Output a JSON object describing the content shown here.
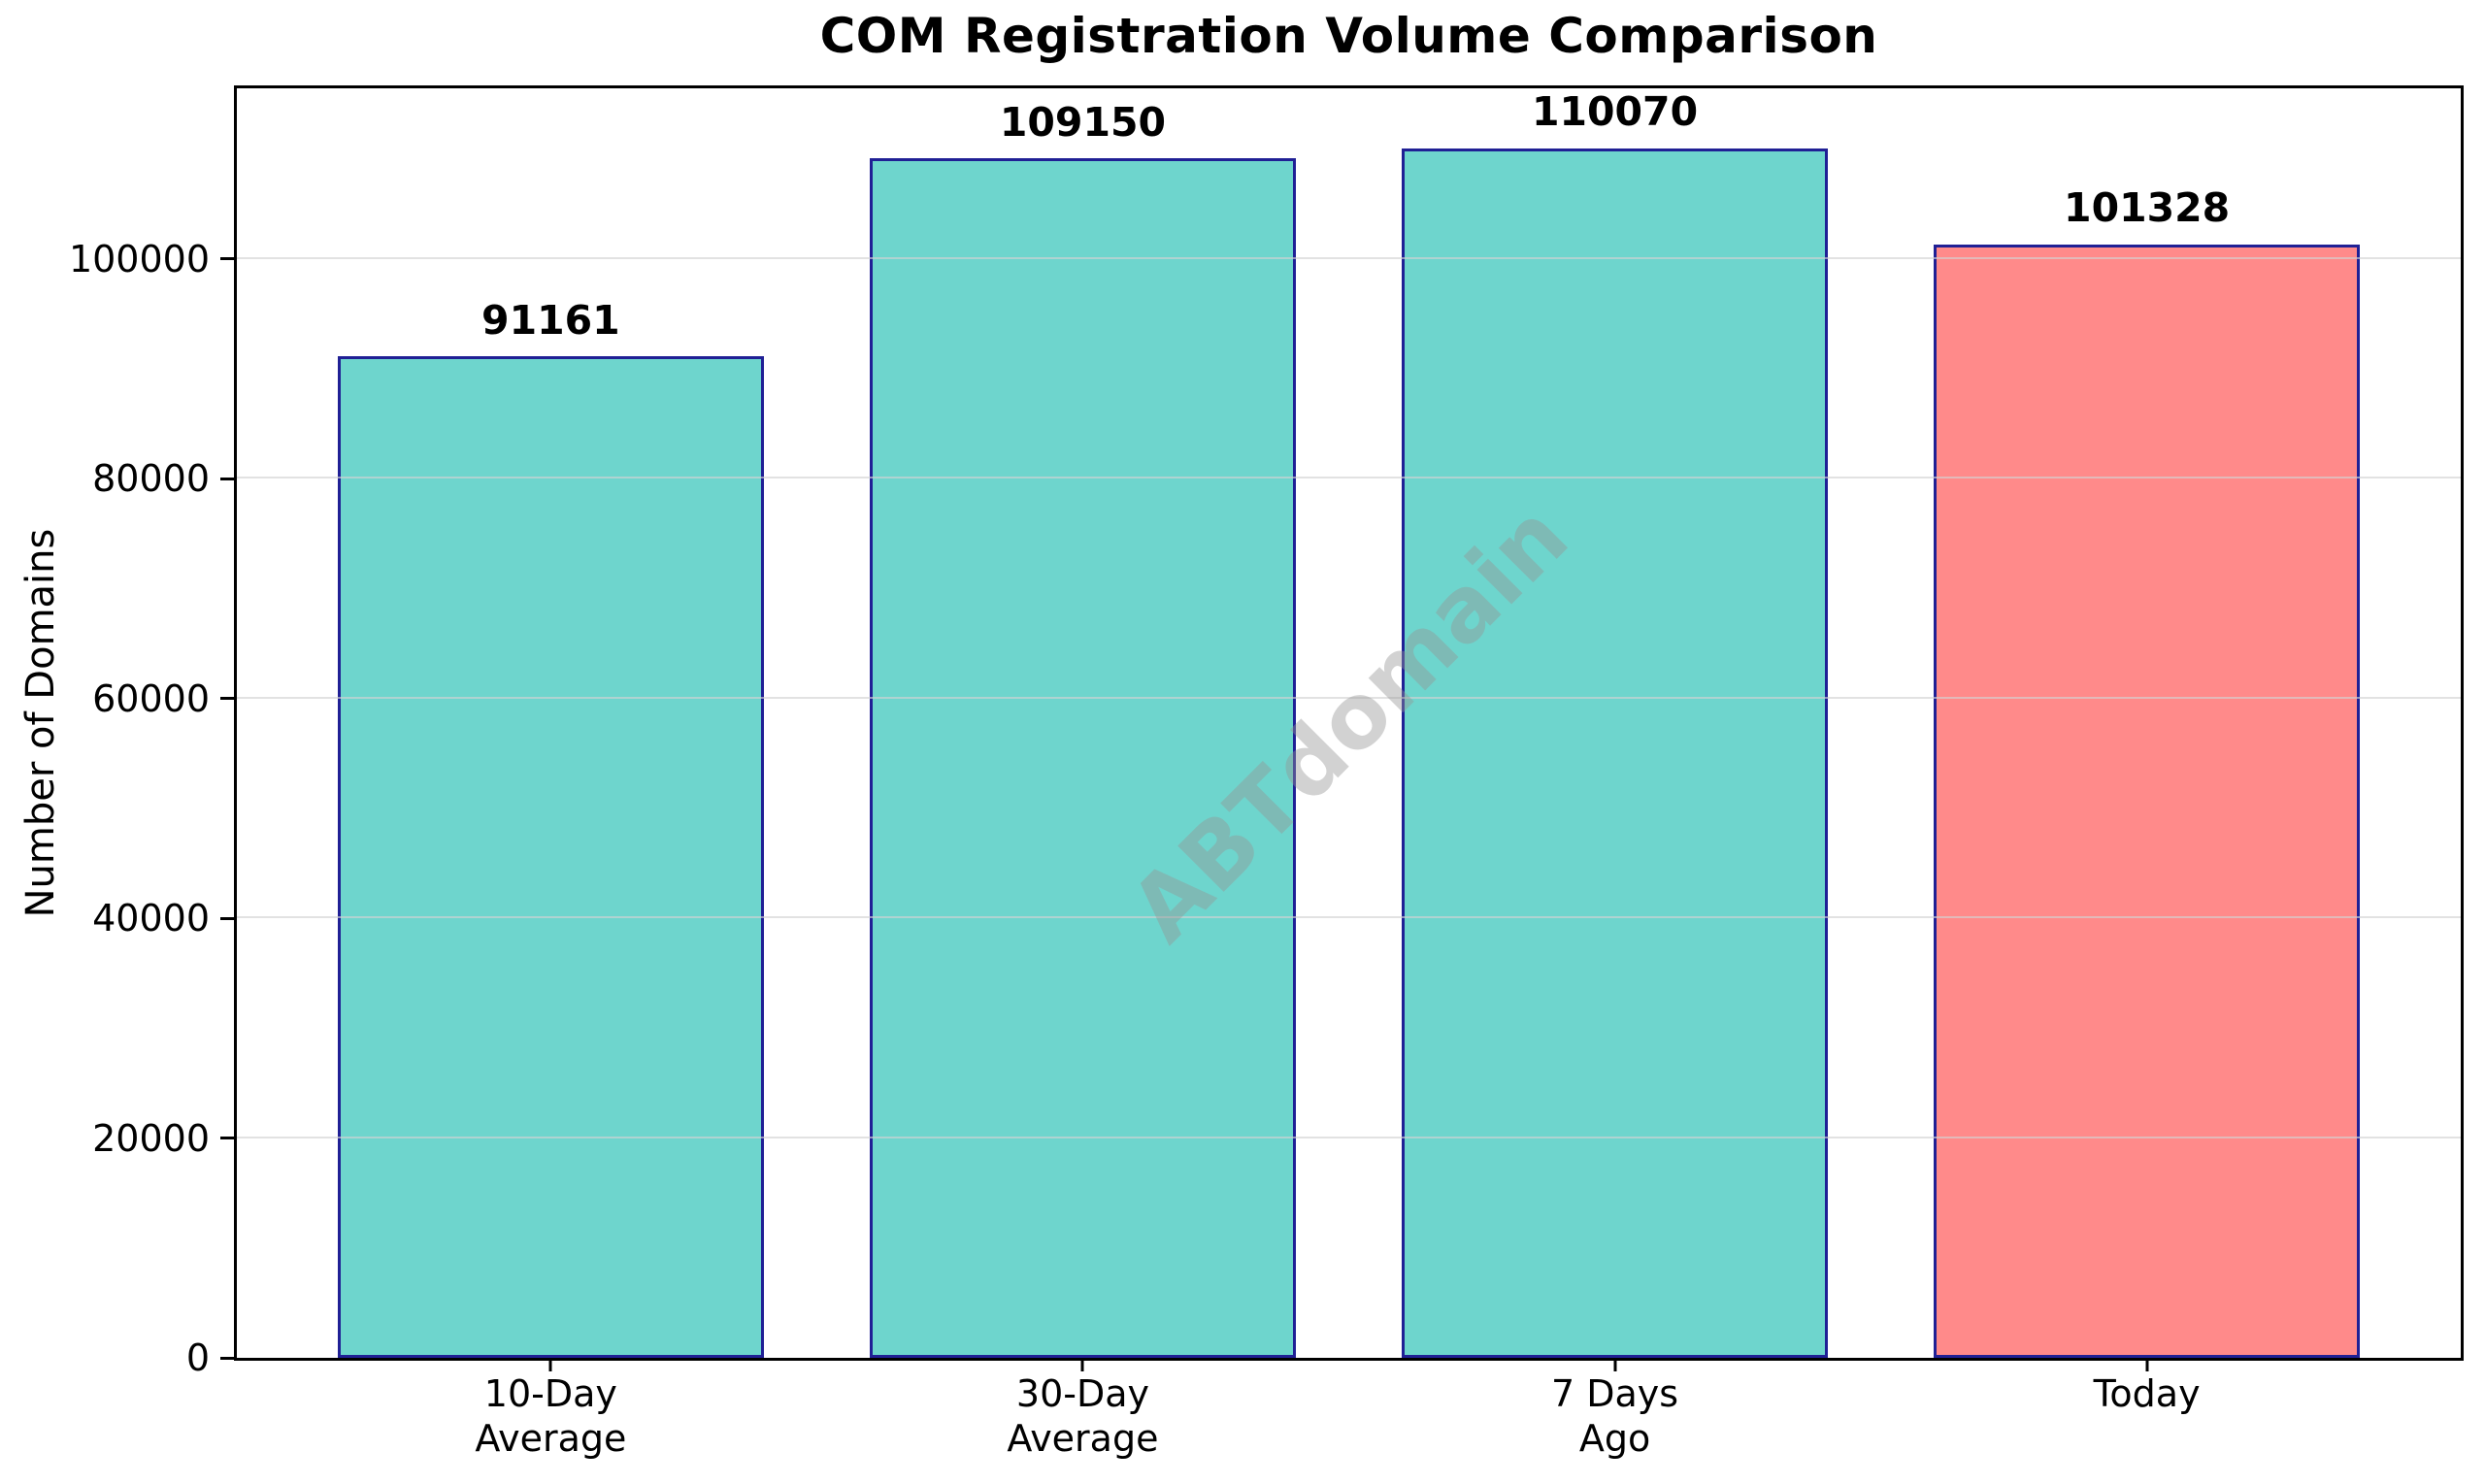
{
  "figure": {
    "title": "COM Registration Volume Comparison",
    "background_color": "#ffffff",
    "spine_color": "#000000"
  },
  "chart_data": {
    "type": "bar",
    "title": "COM Registration Volume Comparison",
    "xlabel": "",
    "ylabel": "Number of Domains",
    "categories": [
      "10-Day\nAverage",
      "30-Day\nAverage",
      "7 Days\nAgo",
      "Today"
    ],
    "values": [
      91161,
      109150,
      110070,
      101328
    ],
    "value_labels": [
      "91161",
      "109150",
      "110070",
      "101328"
    ],
    "bar_colors": [
      "#6ED5CD",
      "#6ED5CD",
      "#6ED5CD",
      "#FF8A8A"
    ],
    "bar_edge_color": "#202095",
    "ylim": [
      0,
      115500
    ],
    "yticks": [
      0,
      20000,
      40000,
      60000,
      80000,
      100000
    ],
    "ytick_labels": [
      "0",
      "20000",
      "40000",
      "60000",
      "80000",
      "100000"
    ],
    "grid": "horizontal gridlines at y ticks, drawn over bars",
    "grid_color": "#d3d3d3",
    "legend_position": "none",
    "watermark": {
      "text": "ABTdomain",
      "angle_deg": -45,
      "color": "#969696",
      "opacity": 0.42
    }
  }
}
